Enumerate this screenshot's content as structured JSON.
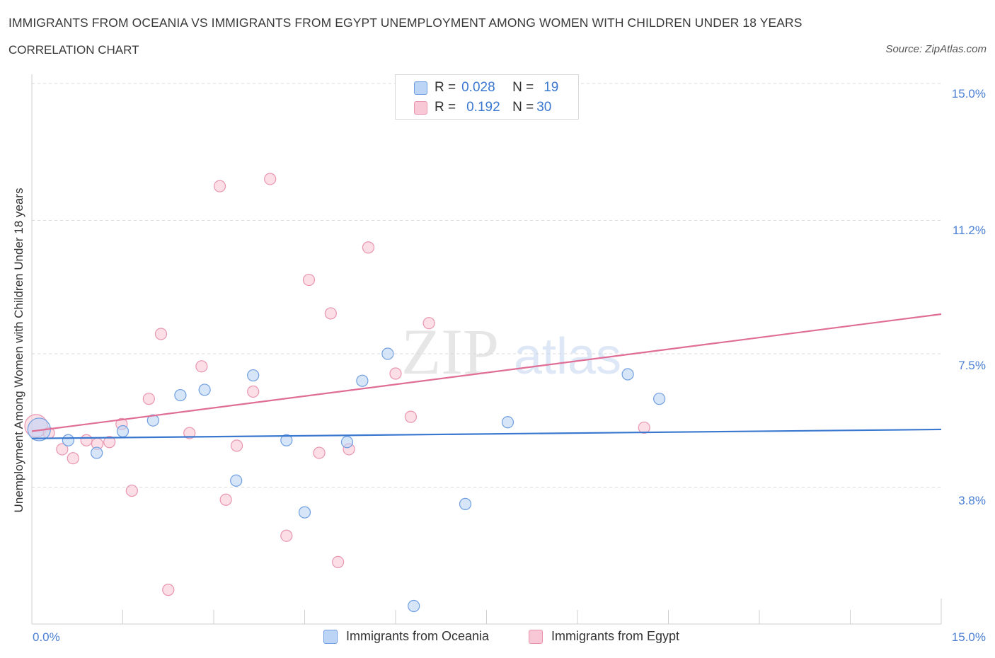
{
  "header": {
    "title": "IMMIGRANTS FROM OCEANIA VS IMMIGRANTS FROM EGYPT UNEMPLOYMENT AMONG WOMEN WITH CHILDREN UNDER 18 YEARS",
    "subtitle": "CORRELATION CHART",
    "source": "Source: ZipAtlas.com"
  },
  "legend": {
    "oceania": {
      "r_label": "R =",
      "r_value": "0.028",
      "n_label": "N =",
      "n_value": "19"
    },
    "egypt": {
      "r_label": "R =",
      "r_value": "0.192",
      "n_label": "N =",
      "n_value": "30"
    }
  },
  "watermark": {
    "zip": "ZIP",
    "atlas": "atlas"
  },
  "colors": {
    "oceania_fill": "#bcd4f5",
    "oceania_stroke": "#6f9fe0",
    "oceania_line": "#3a78d0",
    "egypt_fill": "#f8c8d6",
    "egypt_stroke": "#e995b0",
    "egypt_line": "#e06d96",
    "grid": "#d9d9d9",
    "axis_text": "#4a7fd4"
  },
  "chart_data": {
    "type": "scatter",
    "title": "IMMIGRANTS FROM OCEANIA VS IMMIGRANTS FROM EGYPT UNEMPLOYMENT AMONG WOMEN WITH CHILDREN UNDER 18 YEARS",
    "xlabel": "",
    "ylabel": "Unemployment Among Women with Children Under 18 years",
    "xlim": [
      0,
      15
    ],
    "ylim": [
      0,
      15
    ],
    "x_tick_labels": [
      "0.0%",
      "15.0%"
    ],
    "y_ticks": [
      {
        "value": 3.8,
        "label": "3.8%"
      },
      {
        "value": 7.5,
        "label": "7.5%"
      },
      {
        "value": 11.2,
        "label": "11.2%"
      },
      {
        "value": 15.0,
        "label": "15.0%"
      }
    ],
    "series": [
      {
        "name": "Immigrants from Oceania",
        "color_key": "oceania",
        "r": 0.028,
        "n": 19,
        "trend": {
          "x": [
            0,
            15
          ],
          "y": [
            5.15,
            5.4
          ]
        },
        "points": [
          {
            "x": 0.12,
            "y": 5.4,
            "big": true
          },
          {
            "x": 0.6,
            "y": 5.1
          },
          {
            "x": 1.07,
            "y": 4.75
          },
          {
            "x": 1.5,
            "y": 5.35
          },
          {
            "x": 2.0,
            "y": 5.65
          },
          {
            "x": 2.45,
            "y": 6.35
          },
          {
            "x": 2.85,
            "y": 6.5
          },
          {
            "x": 3.37,
            "y": 3.98
          },
          {
            "x": 3.65,
            "y": 6.9
          },
          {
            "x": 4.2,
            "y": 5.1
          },
          {
            "x": 4.5,
            "y": 3.1
          },
          {
            "x": 5.2,
            "y": 5.05
          },
          {
            "x": 5.45,
            "y": 6.75
          },
          {
            "x": 5.87,
            "y": 7.5
          },
          {
            "x": 6.3,
            "y": 0.5
          },
          {
            "x": 7.15,
            "y": 3.33
          },
          {
            "x": 7.85,
            "y": 5.6
          },
          {
            "x": 9.83,
            "y": 6.93
          },
          {
            "x": 10.35,
            "y": 6.25
          }
        ]
      },
      {
        "name": "Immigrants from Egypt",
        "color_key": "egypt",
        "r": 0.192,
        "n": 30,
        "trend": {
          "x": [
            0,
            15
          ],
          "y": [
            5.35,
            8.6
          ]
        },
        "points": [
          {
            "x": 0.07,
            "y": 5.5,
            "big": true
          },
          {
            "x": 0.28,
            "y": 5.3
          },
          {
            "x": 0.5,
            "y": 4.85
          },
          {
            "x": 0.68,
            "y": 4.6
          },
          {
            "x": 0.9,
            "y": 5.1
          },
          {
            "x": 1.08,
            "y": 5.0
          },
          {
            "x": 1.28,
            "y": 5.05
          },
          {
            "x": 1.48,
            "y": 5.55
          },
          {
            "x": 1.65,
            "y": 3.7
          },
          {
            "x": 1.93,
            "y": 6.25
          },
          {
            "x": 2.13,
            "y": 8.05
          },
          {
            "x": 2.25,
            "y": 0.95
          },
          {
            "x": 2.6,
            "y": 5.3
          },
          {
            "x": 2.8,
            "y": 7.15
          },
          {
            "x": 3.1,
            "y": 12.15
          },
          {
            "x": 3.2,
            "y": 3.45
          },
          {
            "x": 3.38,
            "y": 4.95
          },
          {
            "x": 3.65,
            "y": 6.45
          },
          {
            "x": 3.93,
            "y": 12.35
          },
          {
            "x": 4.2,
            "y": 2.45
          },
          {
            "x": 4.57,
            "y": 9.55
          },
          {
            "x": 4.74,
            "y": 4.75
          },
          {
            "x": 4.93,
            "y": 8.62
          },
          {
            "x": 5.05,
            "y": 1.72
          },
          {
            "x": 5.23,
            "y": 4.85
          },
          {
            "x": 5.55,
            "y": 10.45
          },
          {
            "x": 6.0,
            "y": 6.95
          },
          {
            "x": 6.25,
            "y": 5.75
          },
          {
            "x": 6.55,
            "y": 8.35
          },
          {
            "x": 10.1,
            "y": 5.45
          }
        ]
      }
    ]
  }
}
